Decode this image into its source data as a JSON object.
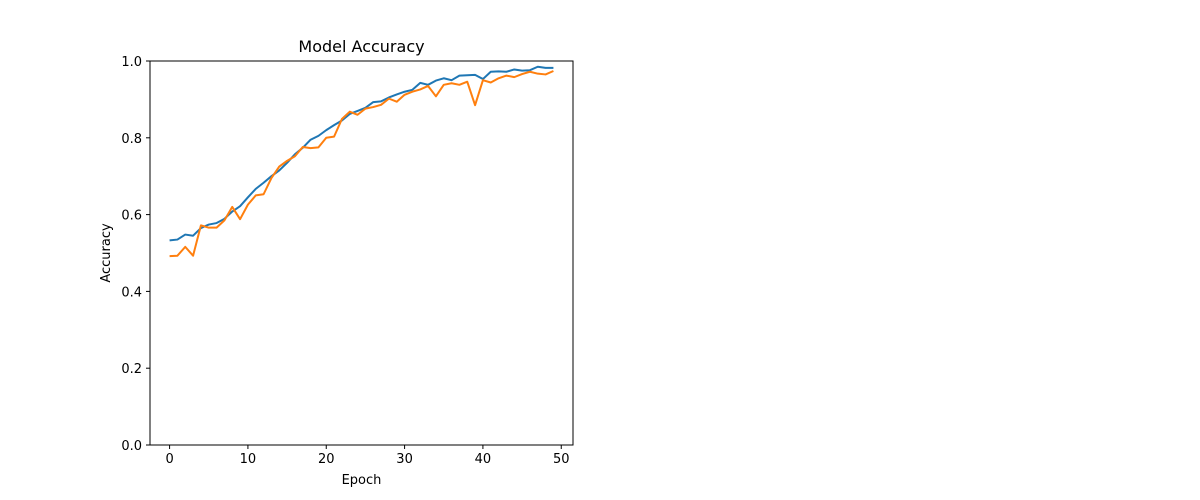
{
  "chart_data": {
    "type": "line",
    "title": "Model Accuracy",
    "xlabel": "Epoch",
    "ylabel": "Accuracy",
    "xlim": [
      -2.5,
      51.5
    ],
    "ylim": [
      0.0,
      1.0
    ],
    "xticks": [
      0,
      10,
      20,
      30,
      40,
      50
    ],
    "xtick_labels": [
      "0",
      "10",
      "20",
      "30",
      "40",
      "50"
    ],
    "yticks": [
      0.0,
      0.2,
      0.4,
      0.6,
      0.8,
      1.0
    ],
    "ytick_labels": [
      "0.0",
      "0.2",
      "0.4",
      "0.6",
      "0.8",
      "1.0"
    ],
    "grid": false,
    "x": [
      0,
      1,
      2,
      3,
      4,
      5,
      6,
      7,
      8,
      9,
      10,
      11,
      12,
      13,
      14,
      15,
      16,
      17,
      18,
      19,
      20,
      21,
      22,
      23,
      24,
      25,
      26,
      27,
      28,
      29,
      30,
      31,
      32,
      33,
      34,
      35,
      36,
      37,
      38,
      39,
      40,
      41,
      42,
      43,
      44,
      45,
      46,
      47,
      48,
      49
    ],
    "series": [
      {
        "color": "#1f77b4",
        "values": [
          0.533,
          0.535,
          0.548,
          0.545,
          0.565,
          0.574,
          0.578,
          0.589,
          0.608,
          0.622,
          0.645,
          0.667,
          0.683,
          0.7,
          0.715,
          0.735,
          0.757,
          0.774,
          0.795,
          0.805,
          0.82,
          0.833,
          0.845,
          0.862,
          0.87,
          0.878,
          0.893,
          0.895,
          0.905,
          0.913,
          0.92,
          0.925,
          0.943,
          0.938,
          0.949,
          0.955,
          0.95,
          0.962,
          0.963,
          0.964,
          0.953,
          0.972,
          0.973,
          0.972,
          0.978,
          0.975,
          0.976,
          0.985,
          0.982,
          0.982
        ]
      },
      {
        "color": "#ff7f0e",
        "values": [
          0.492,
          0.493,
          0.516,
          0.493,
          0.572,
          0.566,
          0.566,
          0.585,
          0.62,
          0.588,
          0.626,
          0.65,
          0.653,
          0.695,
          0.725,
          0.74,
          0.752,
          0.776,
          0.773,
          0.775,
          0.8,
          0.803,
          0.849,
          0.868,
          0.86,
          0.876,
          0.88,
          0.886,
          0.902,
          0.894,
          0.912,
          0.92,
          0.926,
          0.935,
          0.908,
          0.938,
          0.942,
          0.938,
          0.946,
          0.885,
          0.95,
          0.944,
          0.955,
          0.962,
          0.958,
          0.966,
          0.972,
          0.967,
          0.965,
          0.974
        ]
      }
    ]
  }
}
